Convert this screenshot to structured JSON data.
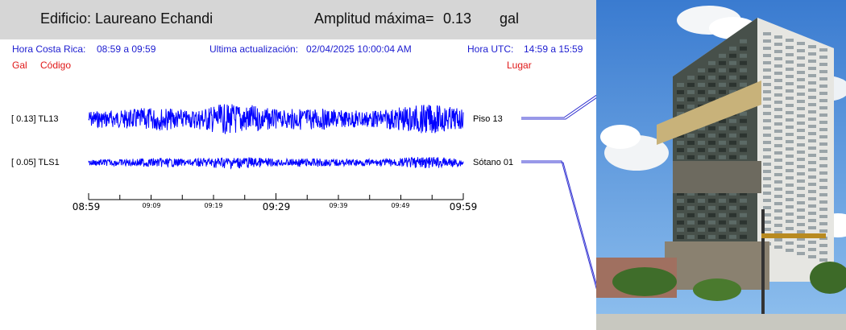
{
  "header": {
    "building_label": "Edificio: Laureano Echandi",
    "max_amp_label": "Amplitud máxima=",
    "max_amp_value": "0.13",
    "unit": "gal"
  },
  "info": {
    "cr_time_label": "Hora Costa Rica:",
    "cr_time_value": "08:59 a 09:59",
    "update_label": "Ultima actualización:",
    "update_value": "02/04/2025 10:00:04 AM",
    "utc_label": "Hora UTC:",
    "utc_value": "14:59 a 15:59"
  },
  "columns": {
    "gal": "Gal",
    "code": "Código",
    "place": "Lugar"
  },
  "channels": [
    {
      "label": "[  0.13] TL13",
      "place": "Piso 13",
      "peak_gal": 0.13
    },
    {
      "label": "[  0.05] TLS1",
      "place": "Sótano 01",
      "peak_gal": 0.05
    }
  ],
  "time_axis": {
    "major": [
      "08:59",
      "09:29",
      "09:59"
    ],
    "minor": [
      "09:09",
      "09:19",
      "09:39",
      "09:49"
    ]
  },
  "colors": {
    "trace": "#0000ff",
    "header_bg": "#d6d6d6",
    "info_text": "#1c1cd0",
    "column_text": "#e01818",
    "leader_line": "#3030d0"
  }
}
